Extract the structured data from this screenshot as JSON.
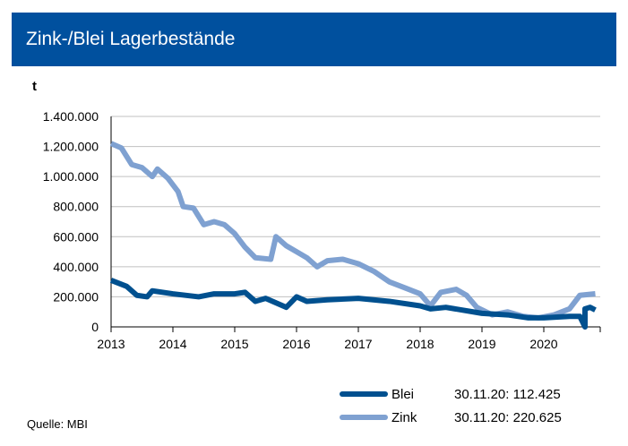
{
  "header": {
    "title": "Zink-/Blei Lagerbestände"
  },
  "source": "Quelle: MBI",
  "chart_data": {
    "type": "line",
    "title": "Zink-/Blei Lagerbestände",
    "ylabel": "t",
    "ylim": [
      0,
      1400000
    ],
    "xlim": [
      "2013-01",
      "2020-11"
    ],
    "grid": true,
    "legend_position": "bottom-right",
    "yticks": [
      "0",
      "200.000",
      "400.000",
      "600.000",
      "800.000",
      "1.000.000",
      "1.200.000",
      "1.400.000"
    ],
    "xticks": [
      "2013",
      "2014",
      "2015",
      "2016",
      "2017",
      "2018",
      "2019",
      "2020"
    ],
    "series": [
      {
        "name": "Blei",
        "color": "#00508f",
        "latest": "30.11.20: 112.425",
        "points": [
          [
            "2013-01",
            310000
          ],
          [
            "2013-04",
            270000
          ],
          [
            "2013-06",
            210000
          ],
          [
            "2013-08",
            200000
          ],
          [
            "2013-09",
            240000
          ],
          [
            "2014-01",
            220000
          ],
          [
            "2014-06",
            200000
          ],
          [
            "2014-09",
            220000
          ],
          [
            "2015-01",
            220000
          ],
          [
            "2015-03",
            230000
          ],
          [
            "2015-05",
            170000
          ],
          [
            "2015-07",
            190000
          ],
          [
            "2015-09",
            160000
          ],
          [
            "2015-11",
            130000
          ],
          [
            "2016-01",
            200000
          ],
          [
            "2016-03",
            170000
          ],
          [
            "2016-07",
            180000
          ],
          [
            "2017-01",
            190000
          ],
          [
            "2017-07",
            170000
          ],
          [
            "2018-01",
            140000
          ],
          [
            "2018-03",
            120000
          ],
          [
            "2018-06",
            130000
          ],
          [
            "2019-01",
            90000
          ],
          [
            "2019-06",
            80000
          ],
          [
            "2019-10",
            60000
          ],
          [
            "2020-01",
            60000
          ],
          [
            "2020-06",
            70000
          ],
          [
            "2020-08",
            70000
          ],
          [
            "2020-09",
            0
          ],
          [
            "2020-09",
            120000
          ],
          [
            "2020-10",
            130000
          ],
          [
            "2020-11",
            112425
          ]
        ]
      },
      {
        "name": "Zink",
        "color": "#7fa1d1",
        "latest": "30.11.20: 220.625",
        "points": [
          [
            "2013-01",
            1220000
          ],
          [
            "2013-03",
            1190000
          ],
          [
            "2013-05",
            1080000
          ],
          [
            "2013-07",
            1060000
          ],
          [
            "2013-09",
            1000000
          ],
          [
            "2013-10",
            1050000
          ],
          [
            "2013-12",
            990000
          ],
          [
            "2014-02",
            900000
          ],
          [
            "2014-03",
            800000
          ],
          [
            "2014-05",
            790000
          ],
          [
            "2014-07",
            680000
          ],
          [
            "2014-09",
            700000
          ],
          [
            "2014-11",
            680000
          ],
          [
            "2015-01",
            620000
          ],
          [
            "2015-03",
            530000
          ],
          [
            "2015-05",
            460000
          ],
          [
            "2015-08",
            450000
          ],
          [
            "2015-09",
            600000
          ],
          [
            "2015-11",
            540000
          ],
          [
            "2016-01",
            500000
          ],
          [
            "2016-03",
            460000
          ],
          [
            "2016-05",
            400000
          ],
          [
            "2016-07",
            440000
          ],
          [
            "2016-10",
            450000
          ],
          [
            "2017-01",
            420000
          ],
          [
            "2017-04",
            370000
          ],
          [
            "2017-07",
            300000
          ],
          [
            "2017-10",
            260000
          ],
          [
            "2018-01",
            220000
          ],
          [
            "2018-03",
            140000
          ],
          [
            "2018-05",
            230000
          ],
          [
            "2018-08",
            250000
          ],
          [
            "2018-10",
            210000
          ],
          [
            "2018-12",
            130000
          ],
          [
            "2019-03",
            80000
          ],
          [
            "2019-06",
            100000
          ],
          [
            "2019-09",
            70000
          ],
          [
            "2019-12",
            60000
          ],
          [
            "2020-03",
            80000
          ],
          [
            "2020-06",
            120000
          ],
          [
            "2020-08",
            210000
          ],
          [
            "2020-11",
            220625
          ]
        ]
      }
    ]
  }
}
